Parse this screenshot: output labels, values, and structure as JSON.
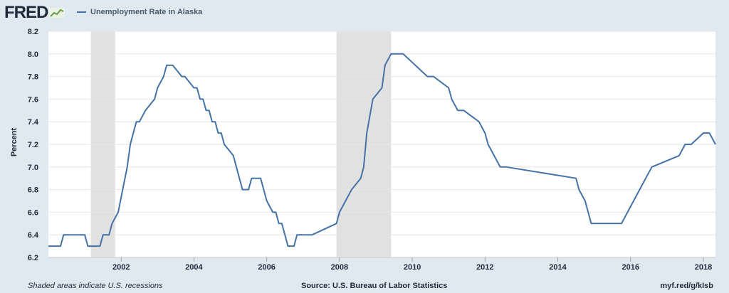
{
  "header": {
    "logo_text": "FRED",
    "legend_label": "Unemployment Rate in Alaska"
  },
  "footer": {
    "note": "Shaded areas indicate U.S. recessions",
    "source": "Source: U.S. Bureau of Labor Statistics",
    "short_url": "myf.red/g/kIsb"
  },
  "chart_data": {
    "type": "line",
    "title": "",
    "xlabel": "",
    "ylabel": "Percent",
    "ylim": [
      6.2,
      8.2
    ],
    "xlim": [
      "2000-01",
      "2018-05"
    ],
    "y_ticks": [
      "6.2",
      "6.4",
      "6.6",
      "6.8",
      "7.0",
      "7.2",
      "7.4",
      "7.6",
      "7.8",
      "8.0",
      "8.2"
    ],
    "x_ticks": [
      "2002",
      "2004",
      "2006",
      "2008",
      "2010",
      "2012",
      "2014",
      "2016",
      "2018"
    ],
    "grid": "horizontal",
    "line_color": "#4572a7",
    "recession_color": "#e1e1e1",
    "recessions": [
      {
        "start": "2001-03",
        "end": "2001-11"
      },
      {
        "start": "2007-12",
        "end": "2009-06"
      }
    ],
    "series": [
      {
        "name": "Unemployment Rate in Alaska",
        "x": [
          "2000-01",
          "2000-05",
          "2000-06",
          "2001-01",
          "2001-02",
          "2001-06",
          "2001-07",
          "2001-09",
          "2001-10",
          "2001-12",
          "2002-03",
          "2002-04",
          "2002-06",
          "2002-07",
          "2002-09",
          "2002-12",
          "2003-01",
          "2003-03",
          "2003-04",
          "2003-06",
          "2003-09",
          "2003-10",
          "2004-01",
          "2004-02",
          "2004-03",
          "2004-04",
          "2004-05",
          "2004-06",
          "2004-07",
          "2004-08",
          "2004-09",
          "2004-10",
          "2004-11",
          "2005-02",
          "2005-04",
          "2005-05",
          "2005-07",
          "2005-08",
          "2005-11",
          "2006-01",
          "2006-03",
          "2006-04",
          "2006-05",
          "2006-06",
          "2006-08",
          "2006-10",
          "2006-11",
          "2007-03",
          "2007-04",
          "2007-12",
          "2008-01",
          "2008-03",
          "2008-05",
          "2008-08",
          "2008-09",
          "2008-10",
          "2008-12",
          "2009-03",
          "2009-04",
          "2009-06",
          "2009-08",
          "2009-10",
          "2010-06",
          "2010-08",
          "2011-01",
          "2011-02",
          "2011-04",
          "2011-06",
          "2011-11",
          "2012-01",
          "2012-02",
          "2012-04",
          "2012-06",
          "2012-08",
          "2014-07",
          "2014-08",
          "2014-10",
          "2014-12",
          "2015-10",
          "2015-12",
          "2016-02",
          "2016-04",
          "2016-06",
          "2016-08",
          "2017-05",
          "2017-07",
          "2017-09",
          "2018-01",
          "2018-03",
          "2018-05"
        ],
        "values": [
          6.3,
          6.3,
          6.4,
          6.4,
          6.3,
          6.3,
          6.4,
          6.4,
          6.5,
          6.6,
          7.0,
          7.2,
          7.4,
          7.4,
          7.5,
          7.6,
          7.7,
          7.8,
          7.9,
          7.9,
          7.8,
          7.8,
          7.7,
          7.7,
          7.6,
          7.6,
          7.5,
          7.5,
          7.4,
          7.4,
          7.3,
          7.3,
          7.2,
          7.1,
          6.9,
          6.8,
          6.8,
          6.9,
          6.9,
          6.7,
          6.6,
          6.6,
          6.5,
          6.5,
          6.3,
          6.3,
          6.4,
          6.4,
          6.4,
          6.5,
          6.6,
          6.7,
          6.8,
          6.9,
          7.0,
          7.3,
          7.6,
          7.7,
          7.9,
          8.0,
          8.0,
          8.0,
          7.8,
          7.8,
          7.7,
          7.6,
          7.5,
          7.5,
          7.4,
          7.3,
          7.2,
          7.1,
          7.0,
          7.0,
          6.9,
          6.8,
          6.7,
          6.5,
          6.5,
          6.6,
          6.7,
          6.8,
          6.9,
          7.0,
          7.1,
          7.2,
          7.2,
          7.3,
          7.3,
          7.2
        ]
      }
    ]
  }
}
